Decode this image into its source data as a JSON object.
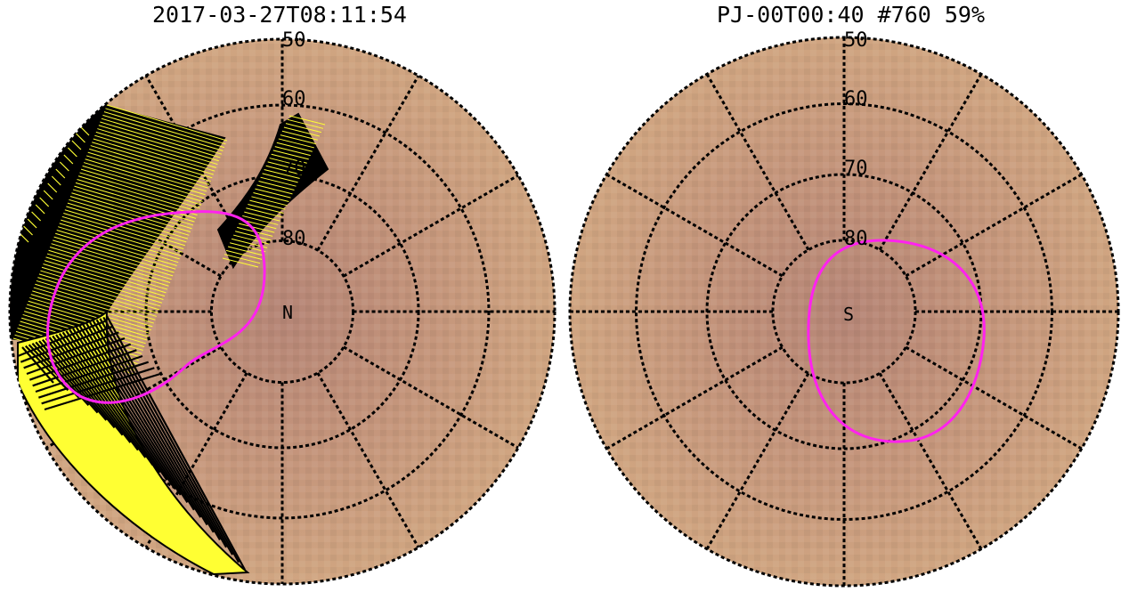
{
  "left_panel": {
    "title": "2017-03-27T08:11:54",
    "pole_label": "N",
    "latitude_labels": [
      "50",
      "60",
      "70",
      "80"
    ]
  },
  "right_panel": {
    "title": "PJ-00T00:40 #760 59%",
    "pole_label": "S",
    "latitude_labels": [
      "50",
      "60",
      "70",
      "80"
    ]
  },
  "colors": {
    "disk": "#c79a7a",
    "disk_center": "#b98878",
    "grid": "#000000",
    "oval": "#ff22ee",
    "footprint_fill": "#ffff33",
    "footprint_stroke": "#000000"
  }
}
